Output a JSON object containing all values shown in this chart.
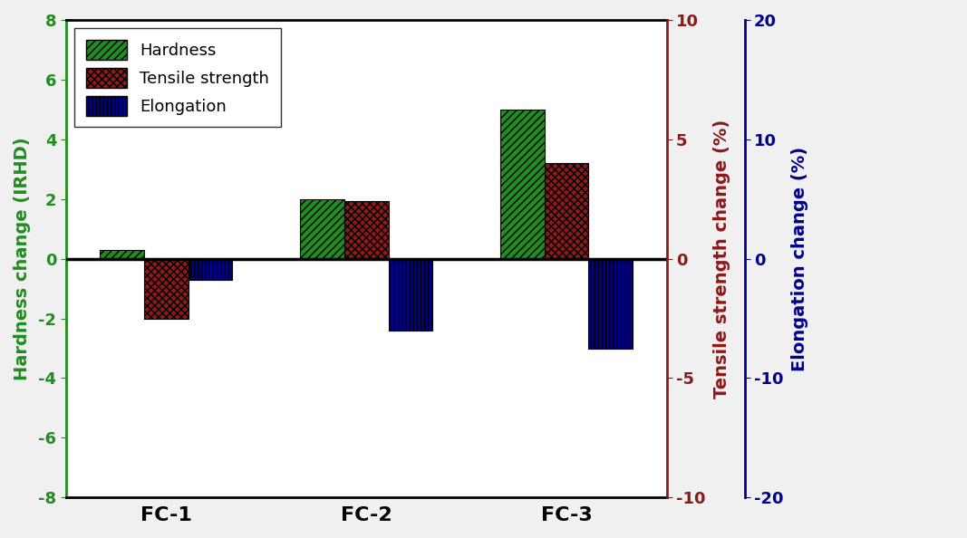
{
  "categories": [
    "FC-1",
    "FC-2",
    "FC-3"
  ],
  "hardness": [
    0.3,
    2.0,
    5.0
  ],
  "tensile": [
    -2.5,
    2.4,
    4.0
  ],
  "elongation": [
    -1.8,
    -6.0,
    -7.5
  ],
  "hardness_color": "#228B22",
  "tensile_color": "#8B1A1A",
  "elongation_color": "#00008B",
  "left_ylim": [
    -8,
    8
  ],
  "left_yticks": [
    -8,
    -6,
    -4,
    -2,
    0,
    2,
    4,
    6,
    8
  ],
  "mid_ylim": [
    -10,
    10
  ],
  "mid_yticks": [
    -10,
    -5,
    0,
    5,
    10
  ],
  "right_ylim": [
    -20,
    20
  ],
  "right_yticks": [
    -20,
    -10,
    0,
    10,
    20
  ],
  "left_ylabel": "Hardness change (IRHD)",
  "mid_ylabel": "Tensile strength change (%)",
  "right_ylabel": "Elongation change (%)",
  "bar_width": 0.22,
  "x_positions": [
    0.0,
    1.0,
    2.0
  ],
  "xlim": [
    -0.5,
    2.5
  ],
  "figsize": [
    10.67,
    5.94
  ],
  "dpi": 100,
  "bg_color": "#f0f0f0"
}
